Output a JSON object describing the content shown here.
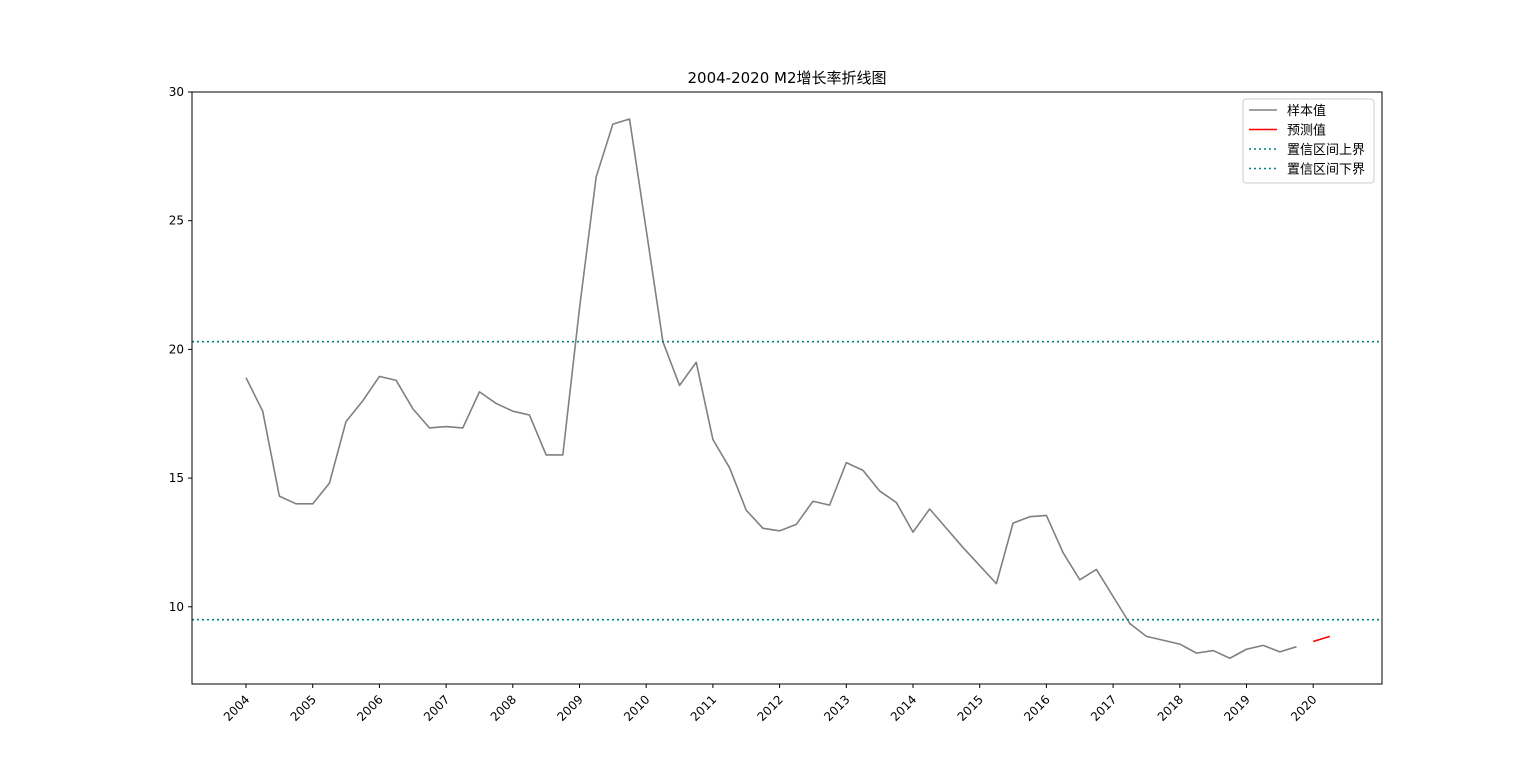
{
  "chart_data": {
    "type": "line",
    "title": "2004-2020 M2增长率折线图",
    "xlabel": "",
    "ylabel": "",
    "x_ticks": [
      "2004",
      "2005",
      "2006",
      "2007",
      "2008",
      "2009",
      "2010",
      "2011",
      "2012",
      "2013",
      "2014",
      "2015",
      "2016",
      "2017",
      "2018",
      "2019",
      "2020"
    ],
    "ylim": [
      7.0,
      30.0
    ],
    "y_ticks": [
      10,
      15,
      20,
      25,
      30
    ],
    "legend_position": "top-right",
    "grid": false,
    "series": [
      {
        "name": "样本值",
        "color": "#808080",
        "style": "solid",
        "x": [
          2004.0,
          2004.25,
          2004.5,
          2004.75,
          2005.0,
          2005.25,
          2005.5,
          2005.75,
          2006.0,
          2006.25,
          2006.5,
          2006.75,
          2007.0,
          2007.25,
          2007.5,
          2007.75,
          2008.0,
          2008.25,
          2008.5,
          2008.75,
          2009.0,
          2009.25,
          2009.5,
          2009.75,
          2010.0,
          2010.25,
          2010.5,
          2010.75,
          2011.0,
          2011.25,
          2011.5,
          2011.75,
          2012.0,
          2012.25,
          2012.5,
          2012.75,
          2013.0,
          2013.25,
          2013.5,
          2013.75,
          2014.0,
          2014.25,
          2014.5,
          2014.75,
          2015.0,
          2015.25,
          2015.5,
          2015.75,
          2016.0,
          2016.25,
          2016.5,
          2016.75,
          2017.0,
          2017.25,
          2017.5,
          2017.75,
          2018.0,
          2018.25,
          2018.5,
          2018.75,
          2019.0,
          2019.25,
          2019.5,
          2019.75
        ],
        "values": [
          18.9,
          17.6,
          14.3,
          14.0,
          14.0,
          14.8,
          17.2,
          18.0,
          18.95,
          18.8,
          17.7,
          16.95,
          17.0,
          16.95,
          18.35,
          17.9,
          17.6,
          17.45,
          15.9,
          15.9,
          21.6,
          26.7,
          28.75,
          28.95,
          24.65,
          20.3,
          18.6,
          19.5,
          16.5,
          15.4,
          13.75,
          13.05,
          12.95,
          13.2,
          14.1,
          13.95,
          15.6,
          15.3,
          14.5,
          14.05,
          12.9,
          13.8,
          13.05,
          12.3,
          11.6,
          10.9,
          13.25,
          13.5,
          13.55,
          12.1,
          11.05,
          11.45,
          10.4,
          9.35,
          8.85,
          8.7,
          8.55,
          8.2,
          8.3,
          8.0,
          8.35,
          8.5,
          8.25,
          8.45
        ]
      },
      {
        "name": "预测值",
        "color": "#ff0000",
        "style": "solid",
        "x": [
          2020.0,
          2020.25
        ],
        "values": [
          8.65,
          8.85
        ]
      },
      {
        "name": "置信区间上界",
        "color": "#008080",
        "style": "dotted",
        "constant": 20.3
      },
      {
        "name": "置信区间下界",
        "color": "#008080",
        "style": "dotted",
        "constant": 9.5
      }
    ]
  }
}
